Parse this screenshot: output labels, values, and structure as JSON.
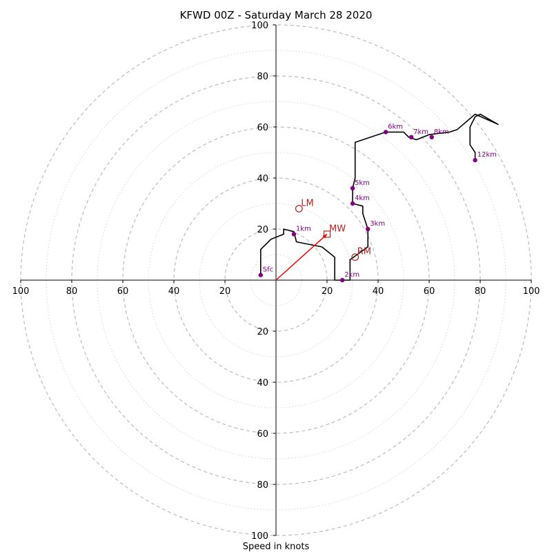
{
  "chart_data": {
    "type": "hodograph",
    "title": "KFWD 00Z - Saturday March 28 2020",
    "xlabel": "Speed in knots",
    "xlim": [
      -100,
      100
    ],
    "ylim": [
      -100,
      100
    ],
    "rings_major": [
      20,
      40,
      60,
      80,
      100
    ],
    "rings_minor": [
      10,
      30,
      50,
      70,
      90
    ],
    "tick_values": [
      20,
      40,
      60,
      80,
      100
    ],
    "grid": true,
    "colors": {
      "trace": "#000000",
      "height_marker": "#800080",
      "motion": "#b22222",
      "mean_wind_vector": "#ff0000",
      "ring_major": "#bbbbbb",
      "ring_minor": "#d3d3d3"
    },
    "trace": [
      [
        -6,
        2
      ],
      [
        -6,
        12
      ],
      [
        -2,
        16
      ],
      [
        3,
        18
      ],
      [
        3,
        20
      ],
      [
        7,
        19
      ],
      [
        8,
        15
      ],
      [
        18,
        13
      ],
      [
        23,
        9
      ],
      [
        23,
        0
      ],
      [
        29,
        0
      ],
      [
        29,
        8
      ],
      [
        36,
        13
      ],
      [
        36,
        20
      ],
      [
        34,
        26
      ],
      [
        34,
        29
      ],
      [
        30,
        30
      ],
      [
        30,
        36
      ],
      [
        31,
        40
      ],
      [
        31,
        54
      ],
      [
        43,
        58
      ],
      [
        50,
        58
      ],
      [
        52,
        56
      ],
      [
        55,
        55
      ],
      [
        60,
        57
      ],
      [
        68,
        58
      ],
      [
        71,
        59
      ],
      [
        78,
        65
      ],
      [
        87,
        61
      ],
      [
        80,
        65
      ],
      [
        78,
        64
      ],
      [
        76,
        60
      ],
      [
        76,
        53
      ],
      [
        78,
        50
      ],
      [
        78,
        47
      ]
    ],
    "height_markers": [
      {
        "label": "Sfc",
        "u": -6,
        "v": 2
      },
      {
        "label": "1km",
        "u": 7,
        "v": 18
      },
      {
        "label": "2km",
        "u": 26,
        "v": 0
      },
      {
        "label": "3km",
        "u": 36,
        "v": 20
      },
      {
        "label": "4km",
        "u": 30,
        "v": 30
      },
      {
        "label": "5km",
        "u": 30,
        "v": 36
      },
      {
        "label": "6km",
        "u": 43,
        "v": 58
      },
      {
        "label": "7km",
        "u": 53,
        "v": 56
      },
      {
        "label": "8km",
        "u": 61,
        "v": 56
      },
      {
        "label": "12km",
        "u": 78,
        "v": 47
      }
    ],
    "storm_motions": [
      {
        "label": "LM",
        "u": 9,
        "v": 28,
        "marker": "circle"
      },
      {
        "label": "RM",
        "u": 31,
        "v": 9,
        "marker": "circle"
      },
      {
        "label": "MW",
        "u": 20,
        "v": 18,
        "marker": "square"
      }
    ],
    "mean_wind_vector": {
      "from": [
        0,
        0
      ],
      "to": [
        20,
        18
      ]
    }
  }
}
